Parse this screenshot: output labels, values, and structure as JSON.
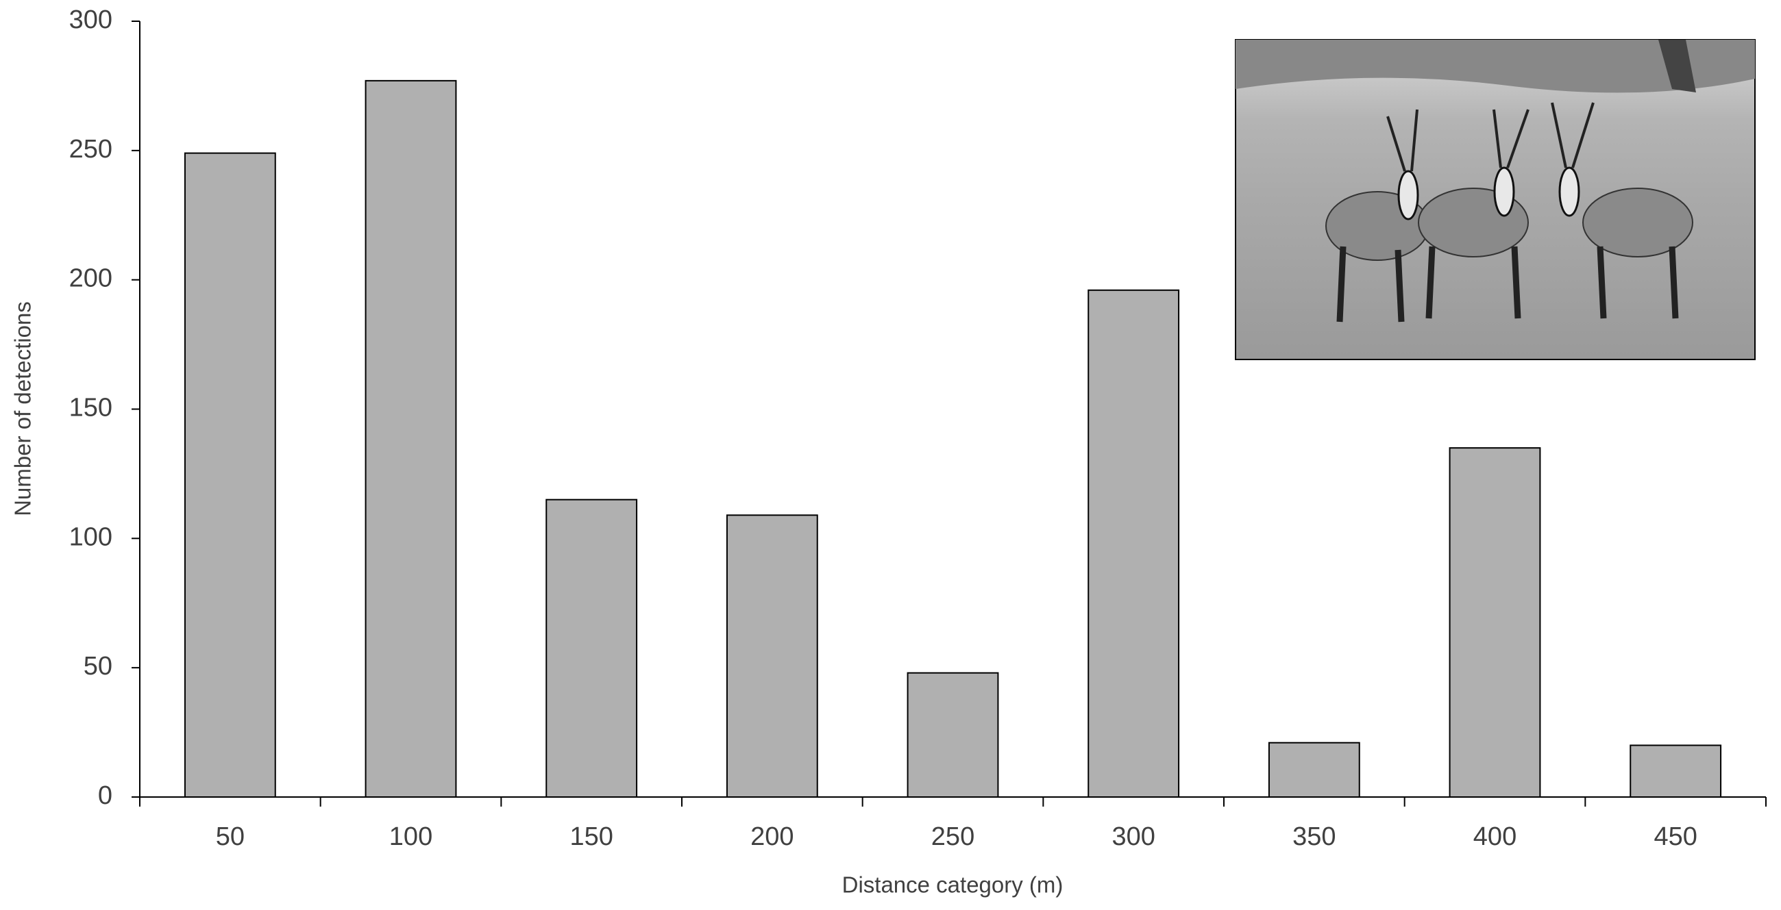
{
  "chart_data": {
    "type": "bar",
    "xlabel": "Distance category (m)",
    "ylabel": "Number of detections",
    "categories": [
      "50",
      "100",
      "150",
      "200",
      "250",
      "300",
      "350",
      "400",
      "450"
    ],
    "values": [
      249,
      277,
      115,
      109,
      48,
      196,
      21,
      135,
      20
    ],
    "color": "#b0b0b0",
    "ylim": [
      0,
      300
    ],
    "yticks": [
      0,
      50,
      100,
      150,
      200,
      250,
      300
    ],
    "grid": false
  }
}
